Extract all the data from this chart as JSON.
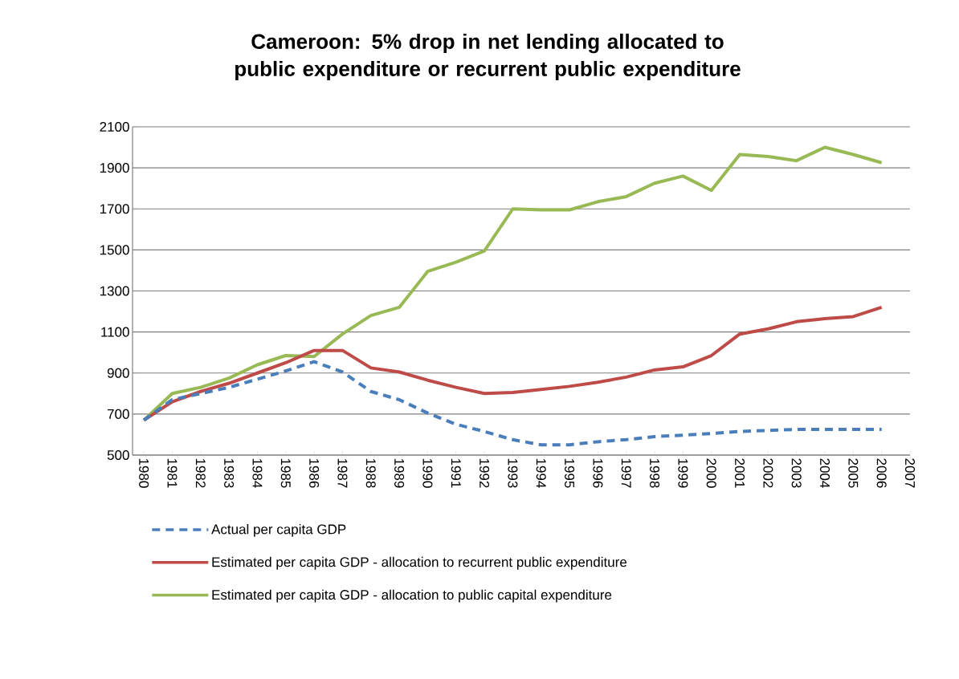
{
  "chart_data": {
    "type": "line",
    "title": "Cameroon: 5% drop in net lending allocated to public expenditure or recurrent public expenditure",
    "categories": [
      "1980",
      "1981",
      "1982",
      "1983",
      "1984",
      "1985",
      "1986",
      "1987",
      "1988",
      "1989",
      "1990",
      "1991",
      "1992",
      "1993",
      "1994",
      "1995",
      "1996",
      "1997",
      "1998",
      "1999",
      "2000",
      "2001",
      "2002",
      "2003",
      "2004",
      "2005",
      "2006",
      "2007"
    ],
    "series": [
      {
        "name": "Actual per capita GDP",
        "color": "#4a7ebb",
        "line_style": "dashed",
        "values": [
          670,
          770,
          800,
          830,
          870,
          910,
          955,
          905,
          810,
          770,
          705,
          650,
          615,
          575,
          550,
          550,
          565,
          575,
          590,
          597,
          605,
          615,
          620,
          625,
          625,
          625,
          625,
          null
        ]
      },
      {
        "name": "Estimated per capita GDP - allocation to recurrent public expenditure",
        "color": "#be4b48",
        "line_style": "solid",
        "values": [
          670,
          760,
          810,
          850,
          900,
          950,
          1010,
          1010,
          925,
          905,
          865,
          830,
          800,
          805,
          820,
          835,
          855,
          880,
          915,
          930,
          985,
          1090,
          1115,
          1150,
          1165,
          1175,
          1220,
          null
        ]
      },
      {
        "name": "Estimated per capita GDP - allocation to public capital expenditure",
        "color": "#98b954",
        "line_style": "solid",
        "values": [
          670,
          800,
          830,
          875,
          940,
          985,
          980,
          1090,
          1180,
          1220,
          1395,
          1440,
          1495,
          1700,
          1695,
          1695,
          1735,
          1760,
          1825,
          1860,
          1790,
          1965,
          1955,
          1935,
          2000,
          1965,
          1925,
          null
        ]
      }
    ],
    "ylim": [
      500,
      2100
    ],
    "yticks": [
      500,
      700,
      900,
      1100,
      1300,
      1500,
      1700,
      1900,
      2100
    ],
    "grid": "y",
    "legend": "bottom",
    "marker": "none"
  }
}
